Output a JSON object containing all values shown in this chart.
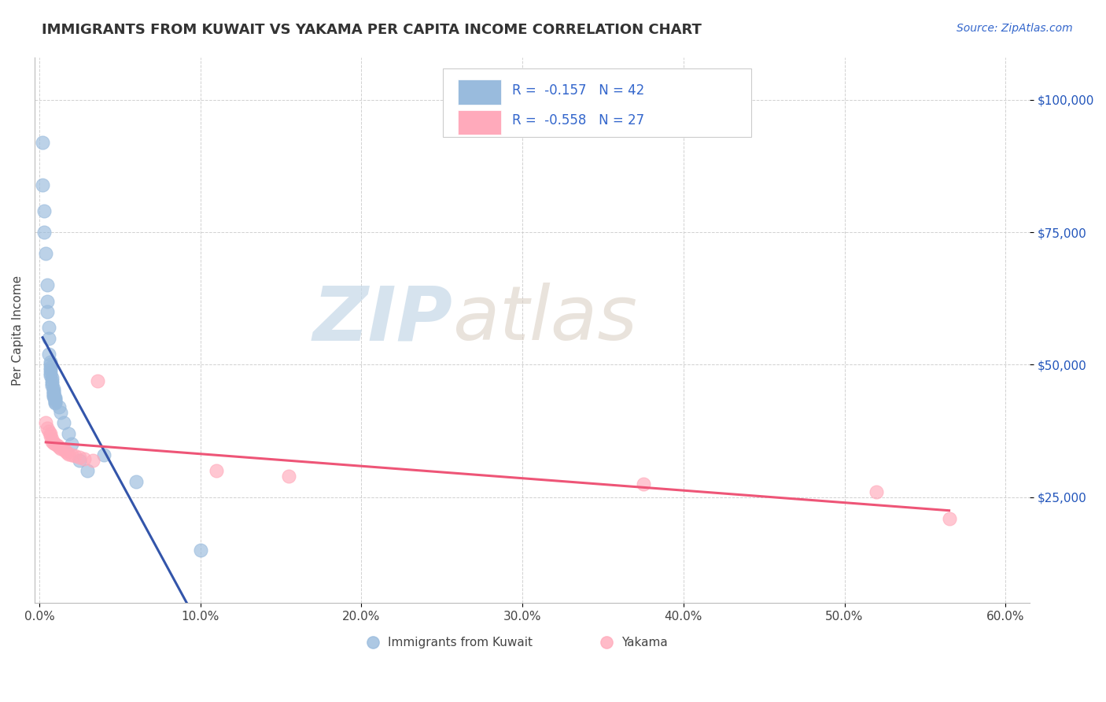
{
  "title": "IMMIGRANTS FROM KUWAIT VS YAKAMA PER CAPITA INCOME CORRELATION CHART",
  "source": "Source: ZipAtlas.com",
  "ylabel": "Per Capita Income",
  "xlim": [
    -0.003,
    0.615
  ],
  "ylim": [
    5000,
    108000
  ],
  "yticks": [
    25000,
    50000,
    75000,
    100000
  ],
  "ytick_labels": [
    "$25,000",
    "$50,000",
    "$75,000",
    "$100,000"
  ],
  "xticks": [
    0.0,
    0.1,
    0.2,
    0.3,
    0.4,
    0.5,
    0.6
  ],
  "xtick_labels": [
    "0.0%",
    "10.0%",
    "20.0%",
    "30.0%",
    "40.0%",
    "50.0%",
    "60.0%"
  ],
  "blue_R": -0.157,
  "blue_N": 42,
  "pink_R": -0.558,
  "pink_N": 27,
  "blue_color": "#99BBDD",
  "pink_color": "#FFAABB",
  "blue_line_color": "#3355AA",
  "pink_line_color": "#EE5577",
  "dash_color": "#AACCEE",
  "legend_labels": [
    "Immigrants from Kuwait",
    "Yakama"
  ],
  "blue_scatter_x": [
    0.002,
    0.002,
    0.003,
    0.003,
    0.004,
    0.005,
    0.005,
    0.005,
    0.006,
    0.006,
    0.006,
    0.007,
    0.007,
    0.007,
    0.007,
    0.007,
    0.007,
    0.008,
    0.008,
    0.008,
    0.008,
    0.009,
    0.009,
    0.009,
    0.009,
    0.009,
    0.009,
    0.01,
    0.01,
    0.01,
    0.01,
    0.01,
    0.012,
    0.013,
    0.015,
    0.018,
    0.02,
    0.025,
    0.03,
    0.04,
    0.06,
    0.1
  ],
  "blue_scatter_y": [
    92000,
    84000,
    79000,
    75000,
    71000,
    65000,
    62000,
    60000,
    57000,
    55000,
    52000,
    50500,
    50000,
    49500,
    49000,
    48500,
    48000,
    47500,
    47000,
    46500,
    46000,
    45500,
    45000,
    44800,
    44500,
    44200,
    44000,
    43800,
    43500,
    43200,
    43000,
    42800,
    42000,
    41000,
    39000,
    37000,
    35000,
    32000,
    30000,
    33000,
    28000,
    15000
  ],
  "pink_scatter_x": [
    0.004,
    0.005,
    0.006,
    0.007,
    0.007,
    0.008,
    0.008,
    0.009,
    0.01,
    0.011,
    0.012,
    0.013,
    0.015,
    0.016,
    0.017,
    0.018,
    0.02,
    0.022,
    0.025,
    0.028,
    0.033,
    0.036,
    0.11,
    0.155,
    0.375,
    0.52,
    0.565
  ],
  "pink_scatter_y": [
    39000,
    38000,
    37500,
    37000,
    36500,
    36000,
    35500,
    35200,
    35000,
    34700,
    34400,
    34200,
    34000,
    33700,
    33500,
    33200,
    33000,
    32800,
    32500,
    32200,
    32000,
    47000,
    30000,
    29000,
    27500,
    26000,
    21000
  ]
}
